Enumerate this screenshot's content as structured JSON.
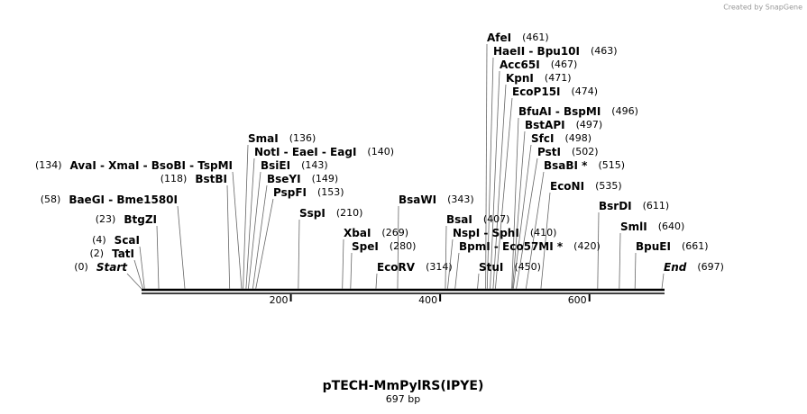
{
  "watermark": "Created by SnapGene",
  "title": "pTECH-MmPylRS(IPYE)",
  "subtitle": "697 bp",
  "axis": {
    "ticks": [
      200,
      400,
      600
    ]
  },
  "sites": [
    {
      "label": "AfeI",
      "position": {
        "value": 461,
        "label": "(461)"
      }
    },
    {
      "label": "HaeII - Bpu10I",
      "position": {
        "value": 463,
        "label": "(463)"
      }
    },
    {
      "label": "Acc65I",
      "position": {
        "value": 467,
        "label": "(467)"
      }
    },
    {
      "label": "KpnI",
      "position": {
        "value": 471,
        "label": "(471)"
      }
    },
    {
      "label": "EcoP15I",
      "position": {
        "value": 474,
        "label": "(474)"
      }
    },
    {
      "label": "BfuAI - BspMI",
      "position": {
        "value": 496,
        "label": "(496)"
      }
    },
    {
      "label": "BstAPI",
      "position": {
        "value": 497,
        "label": "(497)"
      }
    },
    {
      "label": "SfcI",
      "position": {
        "value": 498,
        "label": "(498)"
      }
    },
    {
      "label": "PstI",
      "position": {
        "value": 502,
        "label": "(502)"
      }
    },
    {
      "label": "BsaBI *",
      "position": {
        "value": 515,
        "label": "(515)"
      }
    },
    {
      "label": "EcoNI",
      "position": {
        "value": 535,
        "label": "(535)"
      }
    },
    {
      "label": "BsrDI",
      "position": {
        "value": 611,
        "label": "(611)"
      }
    },
    {
      "label": "SmlI",
      "position": {
        "value": 640,
        "label": "(640)"
      }
    },
    {
      "label": "BpuEI",
      "position": {
        "value": 661,
        "label": "(661)"
      }
    },
    {
      "label": "End",
      "position": {
        "value": 697,
        "label": "(697)"
      }
    },
    {
      "label": "Start",
      "position": {
        "value": 0,
        "label": "(0)"
      }
    },
    {
      "label": "TatI",
      "position": {
        "value": 2,
        "label": "(2)"
      }
    },
    {
      "label": "ScaI",
      "position": {
        "value": 4,
        "label": "(4)"
      }
    },
    {
      "label": "BtgZI",
      "position": {
        "value": 23,
        "label": "(23)"
      }
    },
    {
      "label": "BaeGI - Bme1580I",
      "position": {
        "value": 58,
        "label": "(58)"
      }
    },
    {
      "label": "AvaI - XmaI - BsoBI - TspMI",
      "position": {
        "value": 134,
        "label": "(134)"
      }
    },
    {
      "label": "BstBI",
      "position": {
        "value": 118,
        "label": "(118)"
      }
    },
    {
      "label": "SmaI",
      "position": {
        "value": 136,
        "label": "(136)"
      }
    },
    {
      "label": "NotI - EaeI - EagI",
      "position": {
        "value": 140,
        "label": "(140)"
      }
    },
    {
      "label": "BsiEI",
      "position": {
        "value": 143,
        "label": "(143)"
      }
    },
    {
      "label": "BseYI",
      "position": {
        "value": 149,
        "label": "(149)"
      }
    },
    {
      "label": "PspFI",
      "position": {
        "value": 153,
        "label": "(153)"
      }
    },
    {
      "label": "SspI",
      "position": {
        "value": 210,
        "label": "(210)"
      }
    },
    {
      "label": "BsaWI",
      "position": {
        "value": 343,
        "label": "(343)"
      }
    },
    {
      "label": "XbaI",
      "position": {
        "value": 269,
        "label": "(269)"
      }
    },
    {
      "label": "SpeI",
      "position": {
        "value": 280,
        "label": "(280)"
      }
    },
    {
      "label": "EcoRV",
      "position": {
        "value": 314,
        "label": "(314)"
      }
    },
    {
      "label": "BsaI",
      "position": {
        "value": 407,
        "label": "(407)"
      }
    },
    {
      "label": "NspI - SphI",
      "position": {
        "value": 410,
        "label": "(410)"
      }
    },
    {
      "label": "BpmI - Eco57MI *",
      "position": {
        "value": 420,
        "label": "(420)"
      }
    },
    {
      "label": "StuI",
      "position": {
        "value": 450,
        "label": "(450)"
      }
    }
  ]
}
